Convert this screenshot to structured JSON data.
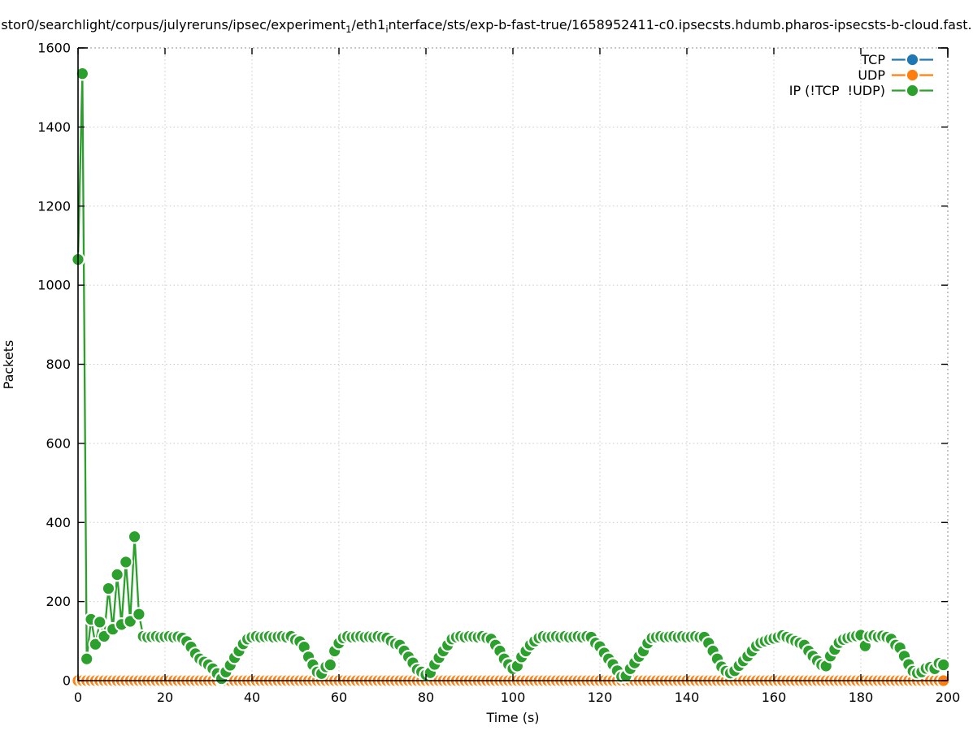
{
  "title": {
    "part1": "stor0/searchlight/corpus/julyreruns/ipsec/experiment",
    "sub1": "1",
    "part2": "/eth1",
    "sub2": "i",
    "part3": "nterface/sts/exp-b-fast-true/1658952411-c0.ipsecsts.hdumb.pharos-ipsecsts-b-cloud.fast."
  },
  "chart_data": {
    "type": "line",
    "title": "stor0/searchlight/corpus/julyreruns/ipsec/experiment_1/eth1_interface/sts/exp-b-fast-true/1658952411-c0.ipsecsts.hdumb.pharos-ipsecsts-b-cloud.fast.",
    "xlabel": "Time (s)",
    "ylabel": "Packets",
    "xlim": [
      0,
      200
    ],
    "ylim": [
      0,
      1600
    ],
    "xticks": [
      0,
      20,
      40,
      60,
      80,
      100,
      120,
      140,
      160,
      180,
      200
    ],
    "yticks": [
      0,
      200,
      400,
      600,
      800,
      1000,
      1200,
      1400,
      1600
    ],
    "grid": "dotted",
    "legend_position": "top-right-inside",
    "marker_style": "filled-circle-with-background-halo",
    "x_start": 0,
    "x_step": 1,
    "x_count": 200,
    "series": [
      {
        "name": "TCP",
        "color": "#1f77b4",
        "constant_value": 0,
        "count": 200
      },
      {
        "name": "UDP",
        "color": "#ff7f0e",
        "constant_value": 0,
        "count": 200
      },
      {
        "name": "IP (!TCP  !UDP)",
        "color": "#2ca02c",
        "values": [
          1065,
          1535,
          55,
          155,
          92,
          148,
          112,
          233,
          130,
          268,
          142,
          300,
          150,
          364,
          168,
          112,
          110,
          111,
          112,
          110,
          111,
          112,
          110,
          111,
          108,
          99,
          85,
          68,
          55,
          47,
          40,
          30,
          18,
          5,
          22,
          39,
          58,
          75,
          93,
          105,
          110,
          112,
          110,
          111,
          112,
          110,
          111,
          112,
          110,
          112,
          103,
          99,
          85,
          60,
          40,
          22,
          18,
          35,
          40,
          75,
          95,
          108,
          112,
          110,
          111,
          112,
          110,
          111,
          110,
          112,
          110,
          108,
          100,
          93,
          90,
          75,
          60,
          45,
          28,
          22,
          15,
          20,
          41,
          58,
          75,
          90,
          105,
          110,
          112,
          110,
          112,
          111,
          110,
          112,
          108,
          105,
          90,
          75,
          55,
          41,
          30,
          37,
          60,
          75,
          90,
          100,
          108,
          112,
          110,
          111,
          112,
          110,
          112,
          110,
          111,
          112,
          110,
          112,
          110,
          95,
          86,
          70,
          55,
          41,
          25,
          10,
          12,
          30,
          45,
          61,
          75,
          95,
          108,
          110,
          112,
          110,
          111,
          112,
          110,
          112,
          110,
          111,
          112,
          110,
          110,
          95,
          75,
          55,
          35,
          24,
          19,
          25,
          38,
          50,
          62,
          75,
          88,
          96,
          100,
          104,
          107,
          110,
          114,
          110,
          105,
          100,
          95,
          90,
          75,
          62,
          50,
          40,
          37,
          62,
          79,
          96,
          104,
          108,
          111,
          113,
          115,
          88,
          112,
          114,
          111,
          113,
          110,
          105,
          90,
          83,
          62,
          41,
          24,
          19,
          22,
          31,
          34,
          30,
          44,
          40
        ]
      }
    ],
    "colors": {
      "tcp": "#1f77b4",
      "udp": "#ff7f0e",
      "ip": "#2ca02c"
    }
  }
}
